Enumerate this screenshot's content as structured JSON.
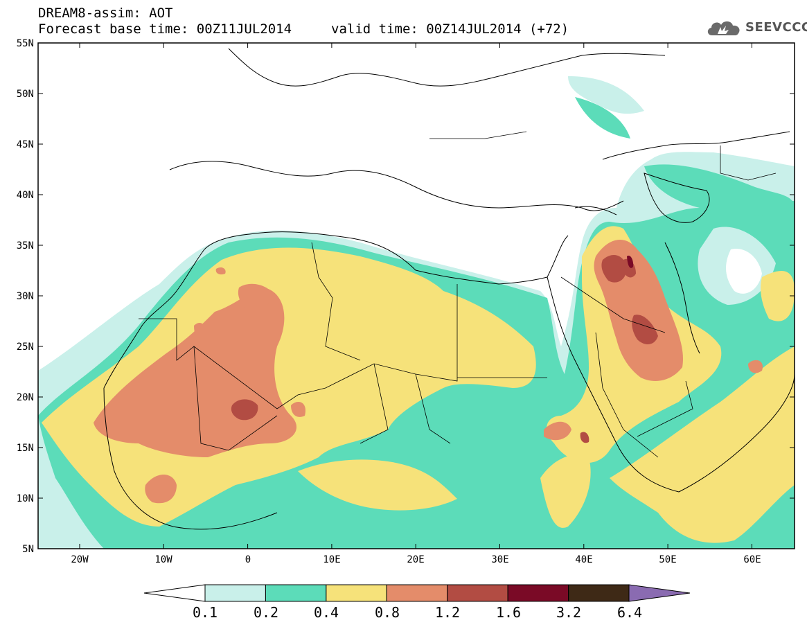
{
  "header": {
    "title": "DREAM8-assim: AOT",
    "base_time": "Forecast base time: 00Z11JUL2014",
    "valid_time": "valid time: 00Z14JUL2014 (+72)",
    "logo_text": "SEEVCCC"
  },
  "map": {
    "lat_labels": [
      "55N",
      "50N",
      "45N",
      "40N",
      "35N",
      "30N",
      "25N",
      "20N",
      "15N",
      "10N",
      "5N"
    ],
    "lon_labels": [
      "20W",
      "10W",
      "0",
      "10E",
      "20E",
      "30E",
      "40E",
      "50E",
      "60E"
    ]
  },
  "colorbar": {
    "labels": [
      "0.1",
      "0.2",
      "0.4",
      "0.8",
      "1.2",
      "1.6",
      "3.2",
      "6.4"
    ],
    "colors": [
      "#c9f0ea",
      "#5cdcb9",
      "#f6e27a",
      "#e48c6a",
      "#b24c43",
      "#7a0a26",
      "#3e2916",
      "#8a6bb1"
    ]
  }
}
